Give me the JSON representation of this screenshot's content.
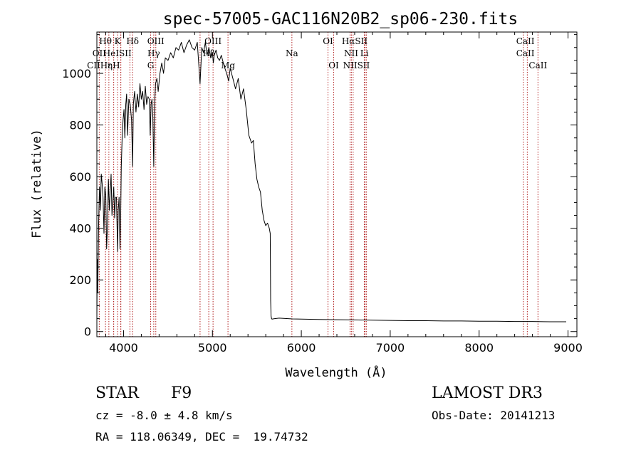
{
  "chart_data": {
    "type": "line",
    "title": "spec-57005-GAC116N20B2_sp06-230.fits",
    "xlabel": "Wavelength (Å)",
    "ylabel": "Flux (relative)",
    "xlim": [
      3700,
      9100
    ],
    "ylim": [
      -20,
      1160
    ],
    "x_ticks": [
      4000,
      5000,
      6000,
      7000,
      8000,
      9000
    ],
    "y_ticks": [
      0,
      200,
      400,
      600,
      800,
      1000
    ],
    "series": [
      {
        "name": "flux",
        "x": [
          3700,
          3705,
          3710,
          3720,
          3730,
          3740,
          3750,
          3760,
          3770,
          3780,
          3790,
          3800,
          3810,
          3820,
          3830,
          3840,
          3850,
          3860,
          3870,
          3880,
          3890,
          3900,
          3910,
          3920,
          3933,
          3940,
          3950,
          3960,
          3968,
          3975,
          3985,
          3995,
          4005,
          4015,
          4025,
          4035,
          4045,
          4060,
          4075,
          4090,
          4102,
          4110,
          4125,
          4140,
          4155,
          4170,
          4185,
          4200,
          4215,
          4230,
          4245,
          4260,
          4275,
          4290,
          4300,
          4310,
          4320,
          4330,
          4340,
          4350,
          4360,
          4375,
          4390,
          4410,
          4430,
          4450,
          4470,
          4500,
          4530,
          4560,
          4590,
          4620,
          4650,
          4680,
          4710,
          4740,
          4770,
          4800,
          4830,
          4861,
          4880,
          4900,
          4920,
          4940,
          4960,
          4980,
          5000,
          5010,
          5020,
          5040,
          5060,
          5080,
          5100,
          5130,
          5160,
          5183,
          5200,
          5230,
          5260,
          5290,
          5320,
          5350,
          5380,
          5410,
          5440,
          5460,
          5480,
          5500,
          5520,
          5540,
          5560,
          5580,
          5600,
          5620,
          5640,
          5650,
          5655,
          5660,
          5665,
          5670,
          5700,
          5750,
          5800,
          5900,
          6000,
          6200,
          6400,
          6600,
          6800,
          7000,
          7200,
          7400,
          7600,
          7800,
          8000,
          8200,
          8400,
          8600,
          8800,
          8980
        ],
        "y": [
          50,
          280,
          150,
          420,
          560,
          470,
          610,
          570,
          520,
          380,
          560,
          530,
          320,
          420,
          590,
          470,
          540,
          610,
          450,
          500,
          560,
          440,
          520,
          520,
          310,
          470,
          520,
          320,
          460,
          640,
          760,
          820,
          860,
          750,
          880,
          920,
          760,
          900,
          880,
          820,
          640,
          880,
          930,
          850,
          920,
          870,
          960,
          900,
          930,
          860,
          950,
          880,
          910,
          900,
          760,
          880,
          900,
          830,
          640,
          880,
          960,
          980,
          930,
          1000,
          1040,
          1000,
          1060,
          1050,
          1080,
          1060,
          1100,
          1090,
          1120,
          1080,
          1110,
          1130,
          1100,
          1090,
          1120,
          960,
          1100,
          1080,
          1120,
          1070,
          1100,
          1060,
          1080,
          1040,
          1070,
          1090,
          1060,
          1050,
          1070,
          1030,
          1000,
          970,
          1020,
          980,
          940,
          980,
          900,
          940,
          860,
          760,
          730,
          740,
          650,
          590,
          560,
          540,
          470,
          430,
          410,
          420,
          400,
          380,
          120,
          60,
          50,
          48,
          50,
          52,
          51,
          49,
          48,
          47,
          46,
          45,
          44,
          43,
          42,
          42,
          41,
          41,
          40,
          40,
          39,
          39,
          38,
          38
        ]
      }
    ],
    "lines": [
      {
        "label": "Hθ",
        "x": 3797
      },
      {
        "label": "OII",
        "x": 3727
      },
      {
        "label": "Hη",
        "x": 3835
      },
      {
        "label": "K",
        "x": 3933
      },
      {
        "label": "HeI",
        "x": 3889
      },
      {
        "label": "Hζ",
        "x": 3889
      },
      {
        "label": "CaII H",
        "x": 3968
      },
      {
        "label": "Hε",
        "x": 3970
      },
      {
        "label": "SII",
        "x": 4072
      },
      {
        "label": "Hδ",
        "x": 4102
      },
      {
        "label": "OIII",
        "x": 4363
      },
      {
        "label": "Hγ",
        "x": 4340
      },
      {
        "label": "G",
        "x": 4305
      },
      {
        "label": "Hβ",
        "x": 4861
      },
      {
        "label": "OIII",
        "x": 4959
      },
      {
        "label": "OIII",
        "x": 5007
      },
      {
        "label": "Mg",
        "x": 5175
      },
      {
        "label": "Na",
        "x": 5894
      },
      {
        "label": "OI",
        "x": 6300
      },
      {
        "label": "OI",
        "x": 6364
      },
      {
        "label": "NII",
        "x": 6548
      },
      {
        "label": "Hα",
        "x": 6563
      },
      {
        "label": "NII",
        "x": 6583
      },
      {
        "label": "Li",
        "x": 6708
      },
      {
        "label": "SII",
        "x": 6716
      },
      {
        "label": "SII",
        "x": 6731
      },
      {
        "label": "CaII",
        "x": 8498
      },
      {
        "label": "CaII",
        "x": 8542
      },
      {
        "label": "CaII",
        "x": 8662
      }
    ]
  },
  "line_labels": {
    "row1": [
      "Hθ",
      "K",
      "Hδ",
      "OIII",
      "OIII",
      "OI",
      "HαSII",
      "CaII"
    ],
    "row2": [
      "OII",
      "HeISII",
      "Hγ",
      "Hβ",
      "Na",
      "NII",
      "Li",
      "CaII"
    ],
    "row3": [
      "CIIHε",
      "ηH",
      "G",
      "Mg",
      "OI",
      "NIISII",
      "CaII"
    ],
    "hidden_hint": "Hζ"
  },
  "info": {
    "object": "STAR",
    "subclass": "F9",
    "survey": "LAMOST DR3",
    "cz": "cz = -8.0 ± 4.8 km/s",
    "obs_date": "Obs-Date: 20141213",
    "coords": "RA = 118.06349, DEC =  19.74732"
  },
  "colors": {
    "line_marker": "#b22222",
    "spectrum": "#000000",
    "axes": "#000000",
    "background": "#ffffff"
  }
}
